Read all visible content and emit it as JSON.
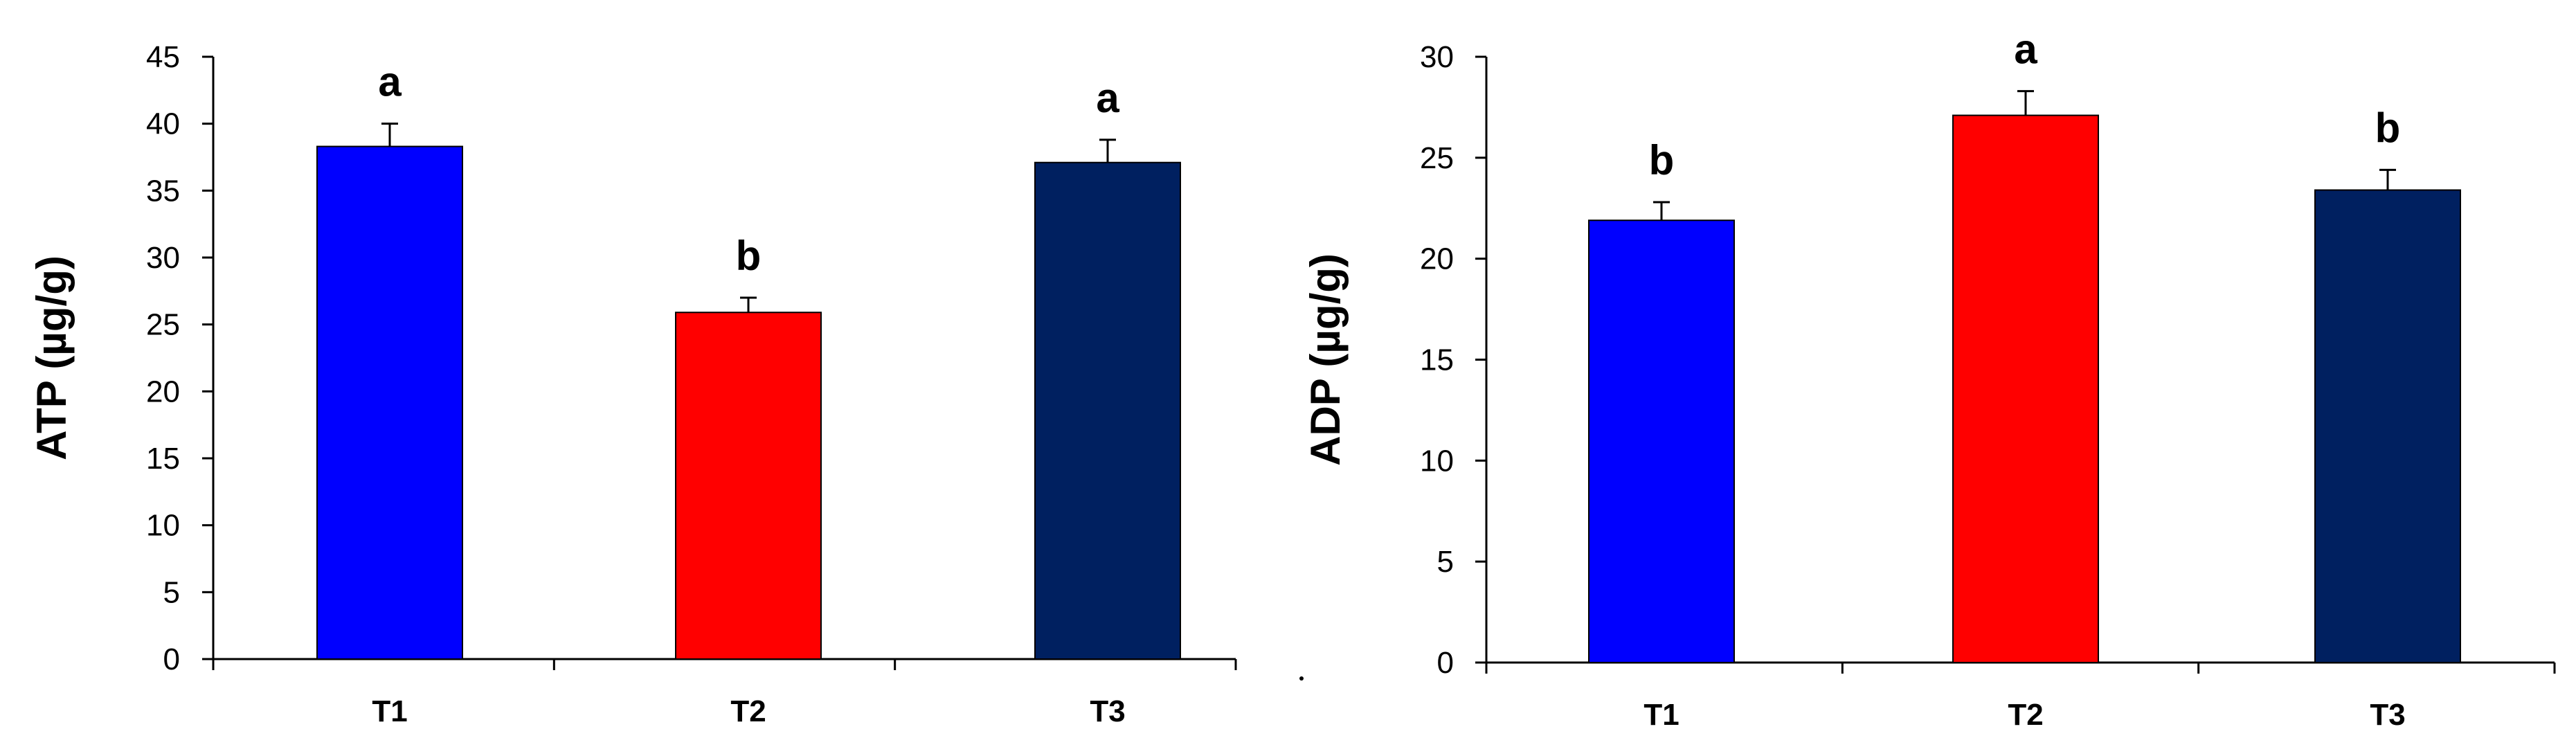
{
  "chart_data": [
    {
      "type": "bar",
      "categories": [
        "T1",
        "T2",
        "T3"
      ],
      "values": [
        38.3,
        25.9,
        37.1
      ],
      "errors": [
        1.7,
        1.1,
        1.7
      ],
      "significance_letters": [
        "a",
        "b",
        "a"
      ],
      "colors": [
        "#0000FF",
        "#FF0000",
        "#002060"
      ],
      "ylabel": "ATP  (µg/g)",
      "ylim": [
        0,
        45
      ],
      "yticks": [
        0,
        5,
        10,
        15,
        20,
        25,
        30,
        35,
        40,
        45
      ],
      "grid": false,
      "legend": "none"
    },
    {
      "type": "bar",
      "categories": [
        "T1",
        "T2",
        "T3"
      ],
      "values": [
        21.9,
        27.1,
        23.4
      ],
      "errors": [
        0.9,
        1.2,
        1.0
      ],
      "significance_letters": [
        "b",
        "a",
        "b"
      ],
      "colors": [
        "#0000FF",
        "#FF0000",
        "#002060"
      ],
      "ylabel": "ADP  (µg/g)",
      "ylim": [
        0,
        30
      ],
      "yticks": [
        0,
        5,
        10,
        15,
        20,
        25,
        30
      ],
      "grid": false,
      "legend": "none"
    }
  ]
}
